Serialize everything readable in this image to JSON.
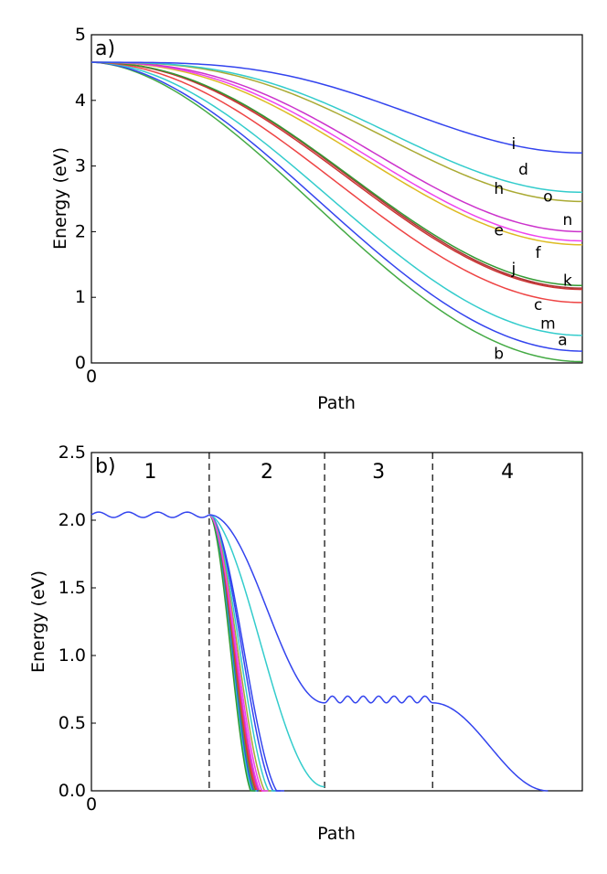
{
  "chart_data": [
    {
      "type": "line",
      "panel": "a)",
      "xlabel": "Path",
      "ylabel": "Energy (eV)",
      "ylim": [
        0,
        5
      ],
      "yticks": [
        "0",
        "1",
        "2",
        "3",
        "4",
        "5"
      ],
      "x_tick_label": "0",
      "start_energy": 4.58,
      "series": [
        {
          "name": "i",
          "end": 3.2,
          "shape": 1.8,
          "color": "#3344ee"
        },
        {
          "name": "d",
          "end": 2.6,
          "shape": 1.5,
          "color": "#33cccc"
        },
        {
          "name": "o",
          "end": 2.46,
          "shape": 1.45,
          "color": "#aaaa33"
        },
        {
          "name": "h",
          "end": 2.0,
          "shape": 1.3,
          "color": "#cc33cc"
        },
        {
          "name": "n",
          "end": 1.86,
          "shape": 1.25,
          "color": "#ee44ee"
        },
        {
          "name": "e",
          "end": 1.8,
          "shape": 1.2,
          "color": "#ddbb22"
        },
        {
          "name": "f",
          "end": 1.18,
          "shape": 1.1,
          "color": "#339933"
        },
        {
          "name": "j",
          "end": 1.14,
          "shape": 1.1,
          "color": "#aa3333"
        },
        {
          "name": "k",
          "end": 1.12,
          "shape": 1.08,
          "color": "#cc3333"
        },
        {
          "name": "c",
          "end": 0.92,
          "shape": 1.0,
          "color": "#ee4444"
        },
        {
          "name": "m",
          "end": 0.42,
          "shape": 0.95,
          "color": "#33cccc"
        },
        {
          "name": "a",
          "end": 0.18,
          "shape": 0.9,
          "color": "#3344ee"
        },
        {
          "name": "b",
          "end": 0.02,
          "shape": 0.88,
          "color": "#44aa44"
        }
      ],
      "labels": [
        {
          "text": "i",
          "x": 0.86,
          "y": 3.26
        },
        {
          "text": "d",
          "x": 0.88,
          "y": 2.87
        },
        {
          "text": "h",
          "x": 0.83,
          "y": 2.58
        },
        {
          "text": "o",
          "x": 0.93,
          "y": 2.46
        },
        {
          "text": "n",
          "x": 0.97,
          "y": 2.1
        },
        {
          "text": "e",
          "x": 0.83,
          "y": 1.94
        },
        {
          "text": "f",
          "x": 0.91,
          "y": 1.6
        },
        {
          "text": "j",
          "x": 0.86,
          "y": 1.36
        },
        {
          "text": "k",
          "x": 0.97,
          "y": 1.18
        },
        {
          "text": "c",
          "x": 0.91,
          "y": 0.81
        },
        {
          "text": "m",
          "x": 0.93,
          "y": 0.52
        },
        {
          "text": "a",
          "x": 0.96,
          "y": 0.27
        },
        {
          "text": "b",
          "x": 0.83,
          "y": 0.06
        }
      ]
    },
    {
      "type": "line",
      "panel": "b)",
      "xlabel": "Path",
      "ylabel": "Energy (eV)",
      "ylim": [
        0,
        2.5
      ],
      "yticks": [
        "0.0",
        "0.5",
        "1.0",
        "1.5",
        "2.0",
        "2.5"
      ],
      "x_tick_label": "0",
      "regions": [
        "1",
        "2",
        "3",
        "4"
      ],
      "region_bounds": [
        0.24,
        0.475,
        0.695
      ],
      "plateau_energy": 2.04,
      "step_energy": 0.65,
      "colors": [
        "#3344ee",
        "#33cccc",
        "#aaaa33",
        "#ee44ee",
        "#cc33cc",
        "#ee4444",
        "#cc3333",
        "#44aa44",
        "#3344ee",
        "#33cccc",
        "#339933",
        "#3344ee"
      ],
      "fan_end_x": [
        0.355,
        0.352,
        0.349,
        0.346,
        0.343,
        0.34,
        0.337,
        0.334
      ],
      "fan_second_x": [
        0.393,
        0.385,
        0.375,
        0.366,
        0.36
      ],
      "tail_end": 0.03
    }
  ]
}
